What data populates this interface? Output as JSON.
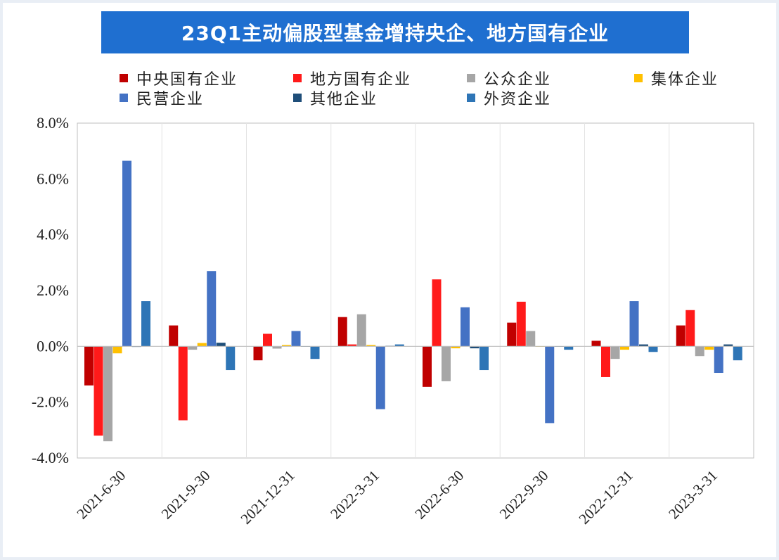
{
  "title": "23Q1主动偏股型基金增持央企、地方国有企业",
  "colors": {
    "title_background": "#1f6fd0",
    "title_text": "#ffffff"
  },
  "chart_data": {
    "type": "bar",
    "title": "23Q1主动偏股型基金增持央企、地方国有企业",
    "xlabel": "",
    "ylabel": "",
    "ylim": [
      -4.0,
      8.0
    ],
    "yticks": [
      "8.0%",
      "6.0%",
      "4.0%",
      "2.0%",
      "0.0%",
      "-2.0%",
      "-4.0%"
    ],
    "ytick_values": [
      8,
      6,
      4,
      2,
      0,
      -2,
      -4
    ],
    "value_unit": "%",
    "grid": "vertical category separators",
    "legend_position": "top",
    "categories": [
      "2021-6-30",
      "2021-9-30",
      "2021-12-31",
      "2022-3-31",
      "2022-6-30",
      "2022-9-30",
      "2022-12-31",
      "2023-3-31"
    ],
    "series": [
      {
        "name": "中央国有企业",
        "color": "#c00000",
        "values": [
          -1.4,
          0.75,
          -0.5,
          1.05,
          -1.45,
          0.85,
          0.2,
          0.75
        ]
      },
      {
        "name": "地方国有企业",
        "color": "#ff1a1a",
        "values": [
          -3.2,
          -2.65,
          0.45,
          0.07,
          2.4,
          1.6,
          -1.1,
          1.3
        ]
      },
      {
        "name": "公众企业",
        "color": "#a6a6a6",
        "values": [
          -3.4,
          -0.12,
          -0.08,
          1.15,
          -1.25,
          0.55,
          -0.45,
          -0.35
        ]
      },
      {
        "name": "集体企业",
        "color": "#ffc000",
        "values": [
          -0.25,
          0.12,
          0.05,
          0.05,
          -0.07,
          0.0,
          -0.12,
          -0.12
        ]
      },
      {
        "name": "民营企业",
        "color": "#4472c4",
        "values": [
          6.65,
          2.7,
          0.55,
          -2.25,
          1.4,
          -2.75,
          1.62,
          -0.95
        ]
      },
      {
        "name": "其他企业",
        "color": "#1f4e79",
        "values": [
          -0.02,
          0.13,
          0.0,
          0.02,
          -0.07,
          0.0,
          0.07,
          0.07
        ]
      },
      {
        "name": "外资企业",
        "color": "#2e75b6",
        "values": [
          1.62,
          -0.85,
          -0.45,
          0.07,
          -0.85,
          -0.12,
          -0.2,
          -0.5
        ]
      }
    ]
  }
}
